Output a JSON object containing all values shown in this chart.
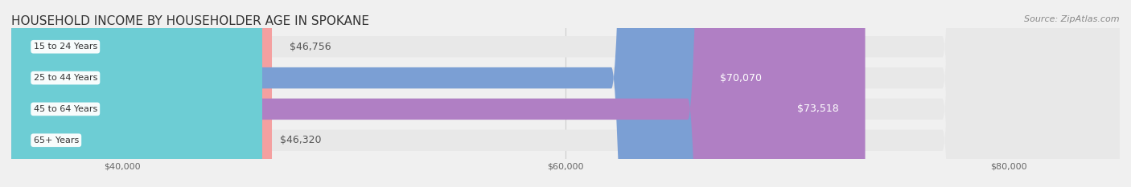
{
  "title": "HOUSEHOLD INCOME BY HOUSEHOLDER AGE IN SPOKANE",
  "source": "Source: ZipAtlas.com",
  "categories": [
    "15 to 24 Years",
    "25 to 44 Years",
    "45 to 64 Years",
    "65+ Years"
  ],
  "values": [
    46756,
    70070,
    73518,
    46320
  ],
  "bar_colors": [
    "#f4a0a0",
    "#7b9fd4",
    "#b07fc4",
    "#6dcdd4"
  ],
  "label_colors": [
    "#555555",
    "#ffffff",
    "#ffffff",
    "#555555"
  ],
  "bar_labels": [
    "$46,756",
    "$70,070",
    "$73,518",
    "$46,320"
  ],
  "x_min": 35000,
  "x_max": 85000,
  "x_ticks": [
    40000,
    60000,
    80000
  ],
  "x_tick_labels": [
    "$40,000",
    "$60,000",
    "$80,000"
  ],
  "background_color": "#f0f0f0",
  "bar_background_color": "#e8e8e8",
  "title_fontsize": 11,
  "source_fontsize": 8,
  "label_fontsize": 9,
  "tick_fontsize": 8,
  "category_fontsize": 8
}
